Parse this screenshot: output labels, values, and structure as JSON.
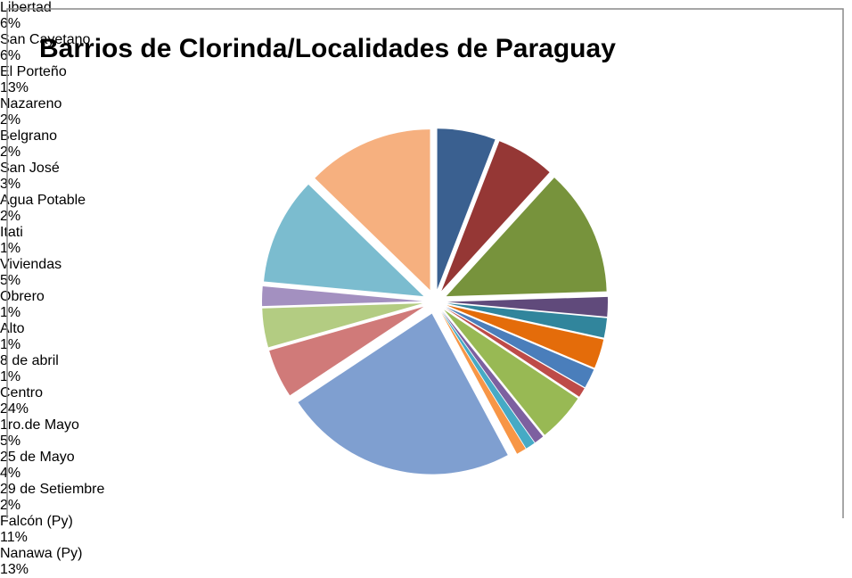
{
  "chart_data": {
    "type": "pie",
    "title": "Barrios de Clorinda/Localidades de Paraguay",
    "categories": [
      "Libertad",
      "San Cayetano",
      "El Porteño",
      "Nazareno",
      "Belgrano",
      "San José",
      "Agua Potable",
      "Itati",
      "Viviendas",
      "Obrero",
      "Alto",
      "8 de abril",
      "Centro",
      "1ro.de Mayo",
      "25 de Mayo",
      "29 de Setiembre",
      "Falcón (Py)",
      "Nanawa (Py)"
    ],
    "values": [
      6,
      6,
      13,
      2,
      2,
      3,
      2,
      1,
      5,
      1,
      1,
      1,
      24,
      5,
      4,
      2,
      11,
      13
    ],
    "value_labels": [
      "6%",
      "6%",
      "13%",
      "2%",
      "2%",
      "3%",
      "2%",
      "1%",
      "5%",
      "1%",
      "1%",
      "1%",
      "24%",
      "5%",
      "4%",
      "2%",
      "11%",
      "13%"
    ],
    "colors": [
      "#3A6090",
      "#953735",
      "#77933C",
      "#604A7B",
      "#31859C",
      "#E46C0A",
      "#4A7EBB",
      "#BE4B48",
      "#98B954",
      "#7D60A0",
      "#46AAC5",
      "#F79646",
      "#7F9FD0",
      "#D07A79",
      "#B3CC82",
      "#A390C0",
      "#7BBCCF",
      "#F6B07F"
    ]
  }
}
